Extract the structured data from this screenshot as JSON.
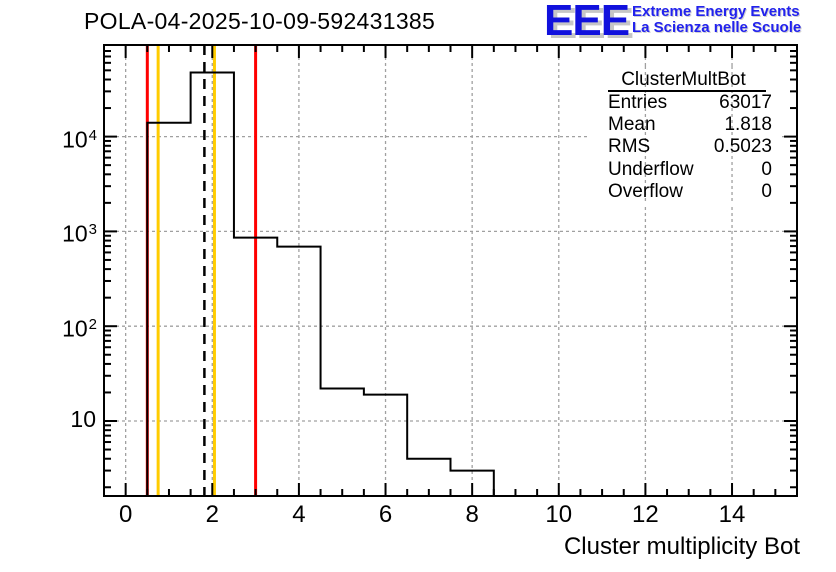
{
  "header": {
    "title": "POLA-04-2025-10-09-592431385"
  },
  "logo": {
    "letters": "EEE",
    "line1": "Extreme Energy Events",
    "line2": "La Scienza nelle Scuole",
    "letters_color": "#1111dd",
    "text_color": "#2222ee"
  },
  "stats": {
    "title": "ClusterMultBot",
    "rows": [
      {
        "label": "Entries",
        "value": "63017"
      },
      {
        "label": "Mean",
        "value": "1.818"
      },
      {
        "label": "RMS",
        "value": "0.5023"
      },
      {
        "label": "Underflow",
        "value": "0"
      },
      {
        "label": "Overflow",
        "value": "0"
      }
    ]
  },
  "chart_data": {
    "type": "bar",
    "subtype": "step-histogram",
    "title": "POLA-04-2025-10-09-592431385",
    "xlabel": "Cluster multiplicity Bot",
    "ylabel": "",
    "x_range": [
      -0.5,
      15.5
    ],
    "y_range": [
      1.6,
      90000
    ],
    "y_scale": "log",
    "grid": true,
    "legend_position": "none",
    "bin_width": 1,
    "bin_left_edge_first": 0.5,
    "bin_centers": [
      1,
      2,
      3,
      4,
      5,
      6,
      7,
      8
    ],
    "values": [
      14000,
      47500,
      860,
      690,
      22,
      19,
      4,
      3
    ],
    "x_major_ticks": [
      0,
      2,
      4,
      6,
      8,
      10,
      12,
      14
    ],
    "x_minor_step": 0.5,
    "y_major_ticks": [
      10,
      100,
      1000,
      10000
    ],
    "y_ticks": [
      {
        "value": 10,
        "base": "10",
        "exp": ""
      },
      {
        "value": 100,
        "base": "10",
        "exp": "2"
      },
      {
        "value": 1000,
        "base": "10",
        "exp": "3"
      },
      {
        "value": 10000,
        "base": "10",
        "exp": "4"
      }
    ],
    "marker_lines": [
      {
        "x": 0.5,
        "color": "#ff0000",
        "style": "solid"
      },
      {
        "x": 0.75,
        "color": "#ffcc00",
        "style": "solid"
      },
      {
        "x": 1.818,
        "color": "#000000",
        "style": "dashed"
      },
      {
        "x": 2.05,
        "color": "#ffcc00",
        "style": "solid"
      },
      {
        "x": 3.0,
        "color": "#ff0000",
        "style": "solid"
      }
    ],
    "colors": {
      "histogram": "#000000",
      "frame": "#000000",
      "grid": "#a0a0a0",
      "red_line": "#ff0000",
      "orange_line": "#ffcc00"
    }
  }
}
